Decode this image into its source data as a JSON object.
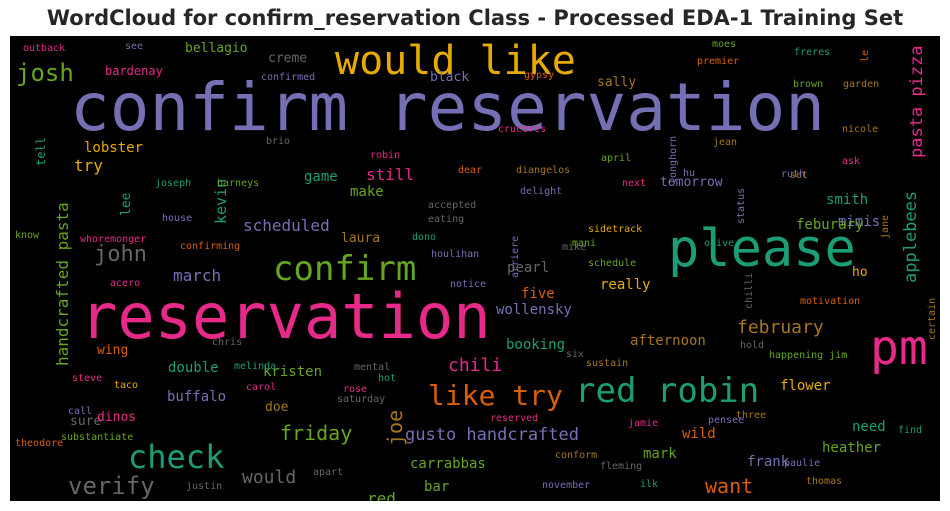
{
  "chart_data": {
    "type": "wordcloud",
    "title": "WordCloud for confirm_reservation Class - Processed EDA-1 Training Set",
    "background": "#000000",
    "palette": [
      "#7570b3",
      "#e7298a",
      "#1b9e77",
      "#d95f02",
      "#66a61e",
      "#e6ab02",
      "#a6761d",
      "#666666"
    ],
    "words": [
      {
        "text": "confirm reservation",
        "size": 66,
        "color": "#7570b3"
      },
      {
        "text": "reservation",
        "size": 62,
        "color": "#e7298a"
      },
      {
        "text": "please",
        "size": 52,
        "color": "#1b9e77"
      },
      {
        "text": "pm",
        "size": 48,
        "color": "#e7298a"
      },
      {
        "text": "would like",
        "size": 40,
        "color": "#e6ab02"
      },
      {
        "text": "red robin",
        "size": 34,
        "color": "#1b9e77"
      },
      {
        "text": "confirm",
        "size": 34,
        "color": "#66a61e"
      },
      {
        "text": "check",
        "size": 32,
        "color": "#1b9e77"
      },
      {
        "text": "like try",
        "size": 28,
        "color": "#d95f02"
      },
      {
        "text": "josh",
        "size": 24,
        "color": "#66a61e"
      },
      {
        "text": "verify",
        "size": 24,
        "color": "#666666"
      },
      {
        "text": "john",
        "size": 22,
        "color": "#666666"
      },
      {
        "text": "want",
        "size": 20,
        "color": "#d95f02"
      },
      {
        "text": "joe",
        "size": 20,
        "color": "#a6761d"
      },
      {
        "text": "friday",
        "size": 20,
        "color": "#66a61e"
      },
      {
        "text": "would",
        "size": 18,
        "color": "#666666"
      },
      {
        "text": "chili",
        "size": 18,
        "color": "#e7298a"
      },
      {
        "text": "february",
        "size": 18,
        "color": "#a6761d"
      },
      {
        "text": "gusto handcrafted",
        "size": 17,
        "color": "#7570b3"
      },
      {
        "text": "pasta pizza",
        "size": 17,
        "color": "#e7298a"
      },
      {
        "text": "applebees",
        "size": 17,
        "color": "#1b9e77"
      },
      {
        "text": "handcrafted pasta",
        "size": 16,
        "color": "#66a61e"
      },
      {
        "text": "march",
        "size": 16,
        "color": "#7570b3"
      },
      {
        "text": "scheduled",
        "size": 16,
        "color": "#7570b3"
      },
      {
        "text": "still",
        "size": 16,
        "color": "#e7298a"
      },
      {
        "text": "try",
        "size": 16,
        "color": "#e6ab02"
      },
      {
        "text": "red",
        "size": 16,
        "color": "#66a61e"
      },
      {
        "text": "kevin",
        "size": 15,
        "color": "#1b9e77"
      },
      {
        "text": "lobster",
        "size": 14,
        "color": "#e6ab02"
      },
      {
        "text": "make",
        "size": 14,
        "color": "#66a61e"
      },
      {
        "text": "game",
        "size": 14,
        "color": "#1b9e77"
      },
      {
        "text": "smith",
        "size": 14,
        "color": "#1b9e77"
      },
      {
        "text": "mimis",
        "size": 14,
        "color": "#7570b3"
      },
      {
        "text": "double",
        "size": 14,
        "color": "#1b9e77"
      },
      {
        "text": "booking",
        "size": 14,
        "color": "#1b9e77"
      },
      {
        "text": "afternoon",
        "size": 14,
        "color": "#a6761d"
      },
      {
        "text": "kristen",
        "size": 14,
        "color": "#66a61e"
      },
      {
        "text": "feburary",
        "size": 14,
        "color": "#66a61e"
      },
      {
        "text": "need",
        "size": 14,
        "color": "#1b9e77"
      },
      {
        "text": "heather",
        "size": 14,
        "color": "#66a61e"
      },
      {
        "text": "flower",
        "size": 14,
        "color": "#e6ab02"
      },
      {
        "text": "buffalo",
        "size": 14,
        "color": "#7570b3"
      },
      {
        "text": "mark",
        "size": 14,
        "color": "#66a61e"
      },
      {
        "text": "wild",
        "size": 14,
        "color": "#d95f02"
      },
      {
        "text": "frank",
        "size": 14,
        "color": "#7570b3"
      },
      {
        "text": "bar",
        "size": 14,
        "color": "#66a61e"
      },
      {
        "text": "carrabbas",
        "size": 14,
        "color": "#66a61e"
      },
      {
        "text": "wollensky",
        "size": 14,
        "color": "#7570b3"
      },
      {
        "text": "really",
        "size": 14,
        "color": "#e6ab02"
      },
      {
        "text": "five",
        "size": 14,
        "color": "#d95f02"
      },
      {
        "text": "pearl",
        "size": 14,
        "color": "#666666"
      },
      {
        "text": "tomorrow",
        "size": 13,
        "color": "#7570b3"
      },
      {
        "text": "lee",
        "size": 13,
        "color": "#1b9e77"
      },
      {
        "text": "laura",
        "size": 13,
        "color": "#a6761d"
      },
      {
        "text": "wing",
        "size": 13,
        "color": "#d95f02"
      },
      {
        "text": "sure",
        "size": 13,
        "color": "#666666"
      },
      {
        "text": "dinos",
        "size": 13,
        "color": "#e7298a"
      },
      {
        "text": "doe",
        "size": 13,
        "color": "#a6761d"
      },
      {
        "text": "ho",
        "size": 13,
        "color": "#e6ab02"
      },
      {
        "text": "bellagio",
        "size": 13,
        "color": "#66a61e"
      },
      {
        "text": "creme",
        "size": 13,
        "color": "#666666"
      },
      {
        "text": "black",
        "size": 13,
        "color": "#7570b3"
      },
      {
        "text": "sally",
        "size": 13,
        "color": "#a6761d"
      },
      {
        "text": "bardenay",
        "size": 12,
        "color": "#e7298a"
      },
      {
        "text": "tell",
        "size": 12,
        "color": "#1b9e77"
      },
      {
        "text": "moes",
        "size": 10,
        "color": "#66a61e"
      },
      {
        "text": "freres",
        "size": 10,
        "color": "#1b9e77"
      },
      {
        "text": "premier",
        "size": 10,
        "color": "#d95f02"
      },
      {
        "text": "le",
        "size": 10,
        "color": "#d95f02"
      },
      {
        "text": "brown",
        "size": 10,
        "color": "#66a61e"
      },
      {
        "text": "garden",
        "size": 10,
        "color": "#a6761d"
      },
      {
        "text": "outback",
        "size": 10,
        "color": "#e7298a"
      },
      {
        "text": "see",
        "size": 10,
        "color": "#7570b3"
      },
      {
        "text": "confirmed",
        "size": 10,
        "color": "#7570b3"
      },
      {
        "text": "gypsy",
        "size": 10,
        "color": "#d95f02"
      },
      {
        "text": "cruceres",
        "size": 10,
        "color": "#e7298a"
      },
      {
        "text": "brio",
        "size": 10,
        "color": "#666666"
      },
      {
        "text": "robin",
        "size": 10,
        "color": "#e7298a"
      },
      {
        "text": "dear",
        "size": 10,
        "color": "#d95f02"
      },
      {
        "text": "diangelos",
        "size": 10,
        "color": "#a6761d"
      },
      {
        "text": "april",
        "size": 10,
        "color": "#66a61e"
      },
      {
        "text": "jean",
        "size": 10,
        "color": "#a6761d"
      },
      {
        "text": "longhorn",
        "size": 10,
        "color": "#7570b3"
      },
      {
        "text": "hu",
        "size": 10,
        "color": "#7570b3"
      },
      {
        "text": "set",
        "size": 10,
        "color": "#a6761d"
      },
      {
        "text": "nicole",
        "size": 10,
        "color": "#a6761d"
      },
      {
        "text": "ask",
        "size": 10,
        "color": "#e7298a"
      },
      {
        "text": "ruth",
        "size": 10,
        "color": "#7570b3"
      },
      {
        "text": "next",
        "size": 10,
        "color": "#e7298a"
      },
      {
        "text": "delight",
        "size": 10,
        "color": "#7570b3"
      },
      {
        "text": "joseph",
        "size": 10,
        "color": "#1b9e77"
      },
      {
        "text": "barneys",
        "size": 10,
        "color": "#66a61e"
      },
      {
        "text": "accepted",
        "size": 10,
        "color": "#666666"
      },
      {
        "text": "eating",
        "size": 10,
        "color": "#666666"
      },
      {
        "text": "house",
        "size": 10,
        "color": "#7570b3"
      },
      {
        "text": "whoremonger",
        "size": 10,
        "color": "#e7298a"
      },
      {
        "text": "know",
        "size": 10,
        "color": "#66a61e"
      },
      {
        "text": "confirming",
        "size": 10,
        "color": "#d95f02"
      },
      {
        "text": "dono",
        "size": 10,
        "color": "#1b9e77"
      },
      {
        "text": "houlihan",
        "size": 10,
        "color": "#7570b3"
      },
      {
        "text": "arriere",
        "size": 10,
        "color": "#7570b3"
      },
      {
        "text": "mani",
        "size": 10,
        "color": "#66a61e"
      },
      {
        "text": "sidetrack",
        "size": 10,
        "color": "#e6ab02"
      },
      {
        "text": "olive",
        "size": 10,
        "color": "#1b9e77"
      },
      {
        "text": "status",
        "size": 10,
        "color": "#7570b3"
      },
      {
        "text": "jane",
        "size": 10,
        "color": "#a6761d"
      },
      {
        "text": "mike",
        "size": 10,
        "color": "#666666"
      },
      {
        "text": "schedule",
        "size": 10,
        "color": "#66a61e"
      },
      {
        "text": "acero",
        "size": 10,
        "color": "#e7298a"
      },
      {
        "text": "notice",
        "size": 10,
        "color": "#7570b3"
      },
      {
        "text": "chilli",
        "size": 10,
        "color": "#666666"
      },
      {
        "text": "motivation",
        "size": 10,
        "color": "#d95f02"
      },
      {
        "text": "certain",
        "size": 10,
        "color": "#a6761d"
      },
      {
        "text": "chris",
        "size": 10,
        "color": "#666666"
      },
      {
        "text": "melinda",
        "size": 10,
        "color": "#1b9e77"
      },
      {
        "text": "mental",
        "size": 10,
        "color": "#666666"
      },
      {
        "text": "hot",
        "size": 10,
        "color": "#1b9e77"
      },
      {
        "text": "six",
        "size": 10,
        "color": "#666666"
      },
      {
        "text": "sustain",
        "size": 10,
        "color": "#a6761d"
      },
      {
        "text": "hold",
        "size": 10,
        "color": "#666666"
      },
      {
        "text": "happening jim",
        "size": 10,
        "color": "#66a61e"
      },
      {
        "text": "steve",
        "size": 10,
        "color": "#e7298a"
      },
      {
        "text": "taco",
        "size": 10,
        "color": "#e6ab02"
      },
      {
        "text": "carol",
        "size": 10,
        "color": "#e7298a"
      },
      {
        "text": "rose",
        "size": 10,
        "color": "#e7298a"
      },
      {
        "text": "saturday",
        "size": 10,
        "color": "#666666"
      },
      {
        "text": "call",
        "size": 10,
        "color": "#7570b3"
      },
      {
        "text": "three",
        "size": 10,
        "color": "#a6761d"
      },
      {
        "text": "theodore",
        "size": 10,
        "color": "#d95f02"
      },
      {
        "text": "substantiate",
        "size": 10,
        "color": "#66a61e"
      },
      {
        "text": "reserved",
        "size": 10,
        "color": "#e7298a"
      },
      {
        "text": "conform",
        "size": 10,
        "color": "#a6761d"
      },
      {
        "text": "jamie",
        "size": 10,
        "color": "#e7298a"
      },
      {
        "text": "pensee",
        "size": 10,
        "color": "#7570b3"
      },
      {
        "text": "find",
        "size": 10,
        "color": "#1b9e77"
      },
      {
        "text": "fleming",
        "size": 10,
        "color": "#666666"
      },
      {
        "text": "paulie",
        "size": 10,
        "color": "#7570b3"
      },
      {
        "text": "apart",
        "size": 10,
        "color": "#666666"
      },
      {
        "text": "justin",
        "size": 10,
        "color": "#666666"
      },
      {
        "text": "november",
        "size": 10,
        "color": "#7570b3"
      },
      {
        "text": "ilk",
        "size": 10,
        "color": "#1b9e77"
      },
      {
        "text": "thomas",
        "size": 10,
        "color": "#a6761d"
      }
    ]
  }
}
